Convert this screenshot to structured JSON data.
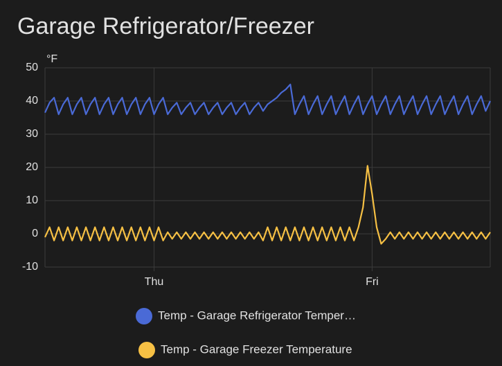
{
  "chart_data": {
    "type": "line",
    "title": "Garage Refrigerator/Freezer",
    "y_label": "°F",
    "categories": [
      null,
      null,
      null,
      null,
      null,
      null,
      null,
      null,
      null,
      null,
      null,
      null,
      null,
      null,
      null,
      null,
      null,
      null,
      null,
      null,
      null,
      null,
      null,
      null,
      "Thu",
      null,
      null,
      null,
      null,
      null,
      null,
      null,
      null,
      null,
      null,
      null,
      null,
      null,
      null,
      null,
      null,
      null,
      null,
      null,
      null,
      null,
      null,
      null,
      null,
      null,
      null,
      null,
      null,
      null,
      null,
      null,
      null,
      null,
      null,
      null,
      null,
      null,
      null,
      null,
      null,
      null,
      null,
      null,
      null,
      null,
      null,
      null,
      "Fri",
      null,
      null,
      null,
      null,
      null,
      null,
      null,
      null,
      null,
      null,
      null,
      null,
      null,
      null,
      null,
      null,
      null,
      null,
      null,
      null,
      null,
      null,
      null,
      null,
      null,
      null
    ],
    "series": [
      {
        "name": "Temp - Garage Refrigerator Temper…",
        "color": "#4a6ad6",
        "values": [
          36.5,
          39.5,
          41,
          36,
          39,
          41,
          36,
          39,
          41,
          36,
          39,
          41,
          36,
          39,
          41,
          36,
          39,
          41,
          36,
          39,
          41,
          36,
          39,
          41,
          36,
          39,
          41,
          36,
          38,
          39.5,
          36,
          38,
          39.5,
          36,
          38,
          39.5,
          36,
          38,
          39.5,
          36,
          38,
          39.5,
          36,
          38,
          39.5,
          36,
          38,
          39.5,
          37,
          39,
          40,
          41,
          42.5,
          43.5,
          45,
          36,
          39,
          41.5,
          36,
          39,
          41.5,
          36,
          39,
          41.5,
          36,
          39,
          41.5,
          36,
          39,
          41.5,
          36,
          39,
          41.5,
          36,
          39,
          41.5,
          36,
          39,
          41.5,
          36,
          39,
          41.5,
          36,
          39,
          41.5,
          36,
          39,
          41.5,
          36,
          39,
          41.5,
          36,
          39,
          41.5,
          36,
          39,
          41.5,
          37,
          40
        ]
      },
      {
        "name": "Temp - Garage Freezer Temperature",
        "color": "#f6c044",
        "values": [
          -1,
          2,
          -2,
          2,
          -2,
          2,
          -2,
          2,
          -2,
          2,
          -2,
          2,
          -2,
          2,
          -2,
          2,
          -2,
          2,
          -2,
          2,
          -2,
          2,
          -2,
          2,
          -2,
          2,
          -2,
          0.5,
          -1.5,
          0.5,
          -1.5,
          0.5,
          -1.5,
          0.5,
          -1.5,
          0.5,
          -1.5,
          0.5,
          -1.5,
          0.5,
          -1.5,
          0.5,
          -1.5,
          0.5,
          -1.5,
          0.5,
          -1.5,
          0.5,
          -2,
          2,
          -2,
          2,
          -2,
          2,
          -2,
          2,
          -2,
          2,
          -2,
          2,
          -2,
          2,
          -2,
          2,
          -2,
          2,
          -2,
          2,
          -2,
          2,
          8,
          20.5,
          12,
          2,
          -3,
          -1.5,
          0.5,
          -1.5,
          0.5,
          -1.5,
          0.5,
          -1.5,
          0.5,
          -1.5,
          0.5,
          -1.5,
          0.5,
          -1.5,
          0.5,
          -1.5,
          0.5,
          -1.5,
          0.5,
          -1.5,
          0.5,
          -1.5,
          0.5,
          -1.5,
          0.5
        ]
      }
    ],
    "ylim": [
      -10,
      50
    ],
    "yticks": [
      -10,
      0,
      10,
      20,
      30,
      40,
      50
    ],
    "grid": true
  }
}
